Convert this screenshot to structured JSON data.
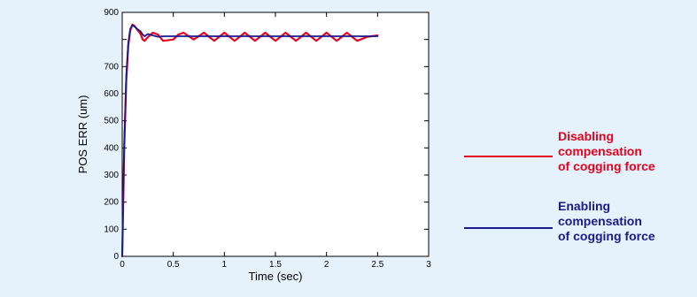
{
  "chart_data": {
    "type": "line",
    "xlabel": "Time (sec)",
    "ylabel": "POS ERR (um)",
    "xlim": [
      0,
      3
    ],
    "ylim": [
      0,
      900
    ],
    "x_ticks": [
      0,
      0.5,
      1,
      1.5,
      2,
      2.5,
      3
    ],
    "x_tick_labels": [
      "0",
      "0.5",
      "1",
      "1.5",
      "2",
      "2.5",
      "3"
    ],
    "y_ticks": [
      0,
      100,
      200,
      300,
      400,
      500,
      600,
      700,
      800,
      900
    ],
    "y_tick_labels": [
      "0",
      "100",
      "200",
      "300",
      "400",
      "500",
      "600",
      "700",
      "",
      "900"
    ],
    "grid": false,
    "legend_position": "right",
    "series": [
      {
        "name": "Disabling compensation of cogging force",
        "color": "#e8001c",
        "x": [
          0,
          0.02,
          0.04,
          0.06,
          0.08,
          0.1,
          0.12,
          0.15,
          0.18,
          0.2,
          0.22,
          0.25,
          0.3,
          0.35,
          0.4,
          0.5,
          0.55,
          0.6,
          0.7,
          0.8,
          0.9,
          1.0,
          1.1,
          1.2,
          1.3,
          1.4,
          1.5,
          1.6,
          1.7,
          1.8,
          1.9,
          2.0,
          2.1,
          2.2,
          2.3,
          2.4,
          2.5
        ],
        "y": [
          0,
          400,
          650,
          780,
          835,
          855,
          850,
          835,
          820,
          800,
          795,
          808,
          825,
          818,
          795,
          800,
          818,
          825,
          800,
          825,
          795,
          825,
          795,
          825,
          795,
          825,
          795,
          825,
          795,
          825,
          795,
          825,
          795,
          825,
          795,
          810,
          815
        ]
      },
      {
        "name": "Enabling compensation of cogging force",
        "color": "#1a1a8c",
        "x": [
          0,
          0.02,
          0.04,
          0.06,
          0.08,
          0.1,
          0.12,
          0.15,
          0.18,
          0.2,
          0.22,
          0.25,
          0.3,
          0.35,
          0.4,
          0.5,
          1.0,
          1.5,
          2.0,
          2.5
        ],
        "y": [
          0,
          420,
          670,
          790,
          840,
          852,
          848,
          838,
          830,
          818,
          812,
          820,
          815,
          810,
          812,
          812,
          812,
          812,
          812,
          812
        ]
      }
    ]
  },
  "legend": {
    "disabling_label": "Disabling\ncompensation\nof cogging force",
    "enabling_label": "Enabling\ncompensation\nof cogging force"
  }
}
